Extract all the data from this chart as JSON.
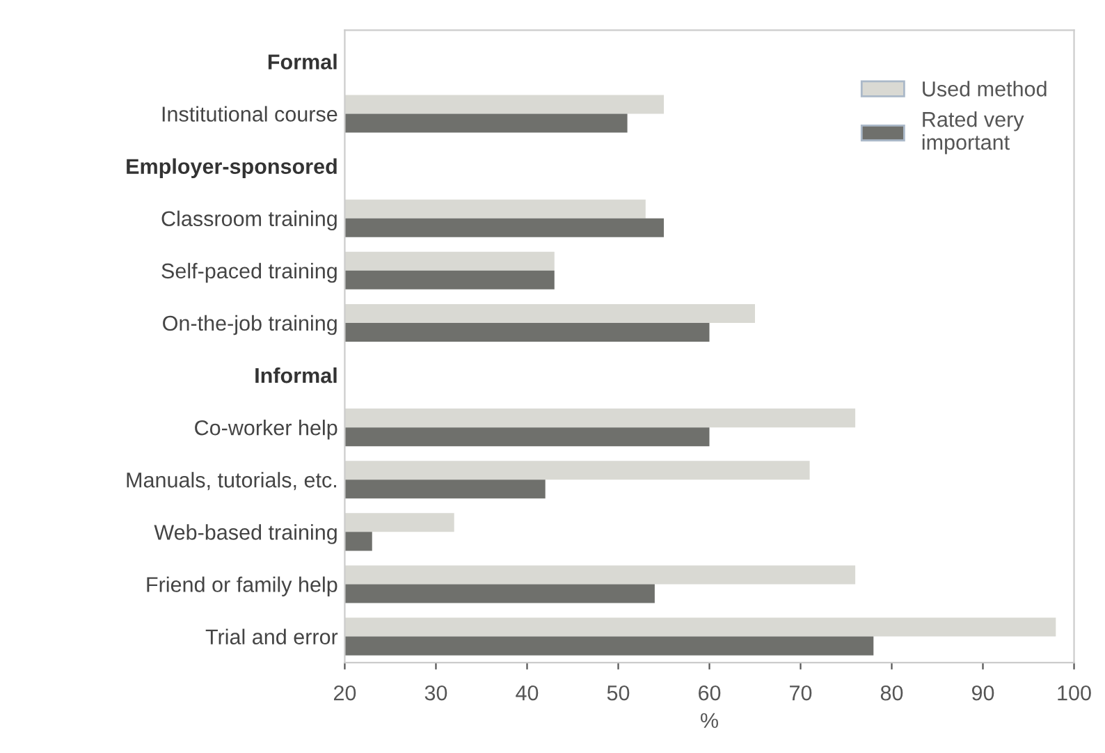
{
  "chart_data": {
    "type": "bar",
    "orientation": "horizontal",
    "xlabel": "%",
    "categories": [
      "Formal",
      "Institutional course",
      "Employer-sponsored",
      "Classroom training",
      "Self-paced training",
      "On-the-job training",
      "Informal",
      "Co-worker help",
      "Manuals, tutorials, etc.",
      "Web-based training",
      "Friend or family help",
      "Trial and error"
    ],
    "series": [
      {
        "name": "Used method",
        "color": "#d9d9d3",
        "values": [
          null,
          55,
          null,
          53,
          43,
          65,
          null,
          76,
          71,
          32,
          76,
          98
        ]
      },
      {
        "name": "Rated very important",
        "color": "#6f706c",
        "values": [
          null,
          51,
          null,
          55,
          43,
          60,
          null,
          60,
          42,
          23,
          54,
          78
        ]
      }
    ],
    "xlim": [
      20,
      100
    ],
    "xticks": [
      20,
      30,
      40,
      50,
      60,
      70,
      80,
      90,
      100
    ],
    "grid": false,
    "legend": "top right"
  }
}
